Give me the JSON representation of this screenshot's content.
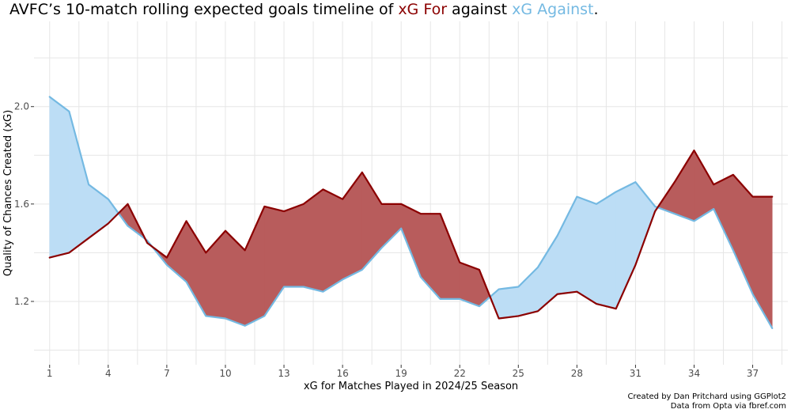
{
  "title": {
    "prefix": "AVFC’s 10-match rolling expected goals timeline of ",
    "xg_for": "xG For",
    "middle": " against ",
    "xg_against": "xG Against",
    "suffix": "."
  },
  "caption": {
    "line1": "Created by Dan Pritchard using GGPlot2",
    "line2": "Data from Opta via fbref.com"
  },
  "colors": {
    "xg_for_line": "#8B0000",
    "xg_for_fill": "#B85C5C",
    "xg_against_line": "#74B9E2",
    "xg_against_fill": "#BCDDF5",
    "grid": "#E6E6E6",
    "text": "#4D4D4D"
  },
  "chart_data": {
    "type": "area",
    "xlabel": "xG for Matches Played in 2024/25 Season",
    "ylabel": "Quality of Chances Created (xG)",
    "xlim": [
      0.2,
      38.8
    ],
    "ylim": [
      0.94,
      2.35
    ],
    "x_ticks": [
      1,
      4,
      7,
      10,
      13,
      16,
      19,
      22,
      25,
      28,
      31,
      34,
      37
    ],
    "y_ticks": [
      1.2,
      1.6,
      2.0
    ],
    "y_tick_labels": [
      "1.2",
      "1.6",
      "2.0"
    ],
    "grid": true,
    "x": [
      1,
      2,
      3,
      4,
      5,
      6,
      7,
      8,
      9,
      10,
      11,
      12,
      13,
      14,
      15,
      16,
      17,
      18,
      19,
      20,
      21,
      22,
      23,
      24,
      25,
      26,
      27,
      28,
      29,
      30,
      31,
      32,
      33,
      34,
      35,
      36,
      37,
      38
    ],
    "series": [
      {
        "name": "xG For",
        "values": [
          1.38,
          1.4,
          1.46,
          1.52,
          1.6,
          1.44,
          1.38,
          1.53,
          1.4,
          1.49,
          1.41,
          1.59,
          1.57,
          1.6,
          1.66,
          1.62,
          1.73,
          1.6,
          1.6,
          1.56,
          1.56,
          1.36,
          1.33,
          1.13,
          1.14,
          1.16,
          1.23,
          1.24,
          1.19,
          1.17,
          1.35,
          1.57,
          1.69,
          1.82,
          1.68,
          1.72,
          1.63,
          1.63
        ]
      },
      {
        "name": "xG Against",
        "values": [
          2.04,
          1.98,
          1.68,
          1.62,
          1.51,
          1.45,
          1.35,
          1.28,
          1.14,
          1.13,
          1.1,
          1.14,
          1.26,
          1.26,
          1.24,
          1.29,
          1.33,
          1.42,
          1.5,
          1.3,
          1.21,
          1.21,
          1.18,
          1.25,
          1.26,
          1.34,
          1.47,
          1.63,
          1.6,
          1.65,
          1.69,
          1.59,
          1.56,
          1.53,
          1.58,
          1.41,
          1.23,
          1.09
        ]
      }
    ]
  }
}
